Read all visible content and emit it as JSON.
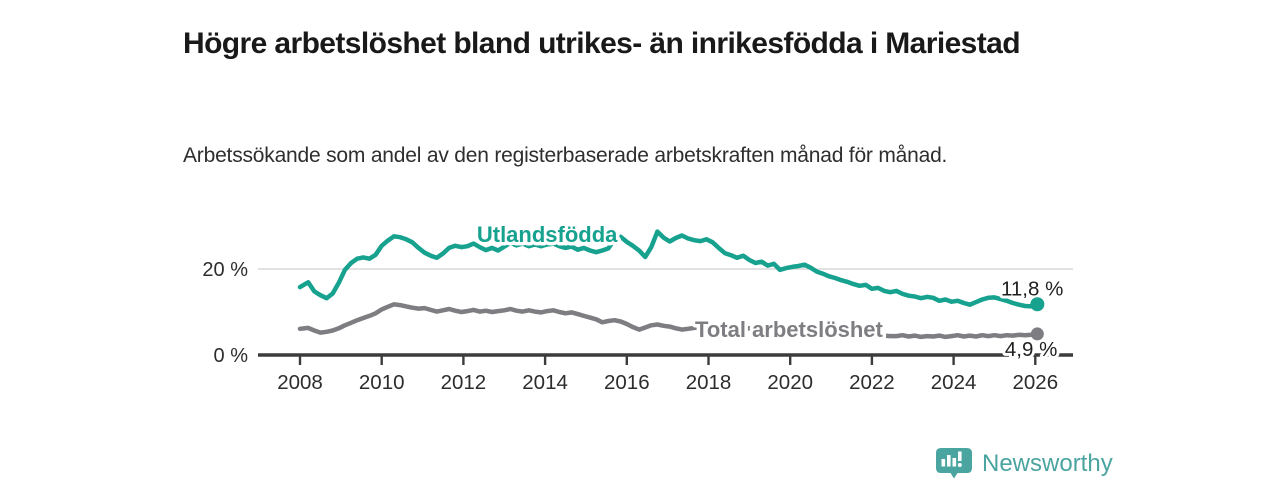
{
  "header": {
    "title": "Högre arbetslöshet bland utrikes- än inrikesfödda i Mariestad",
    "subtitle": "Arbetssökande som andel av den registerbaserade arbetskraften månad för månad."
  },
  "branding": {
    "logo_text": "Newsworthy",
    "logo_icon": "bar-chart-speech-bubble-icon",
    "logo_color": "#4aa49f"
  },
  "chart_data": {
    "type": "line",
    "x_unit": "year (monthly observations)",
    "y_unit": "percent of registered labour force",
    "xlim": [
      2007.5,
      2026.9
    ],
    "ylim": [
      0,
      30
    ],
    "grid": "single horizontal gridline at 20 %",
    "colors": {
      "axis": "#3c3c3c",
      "gridline": "#d8d8d8",
      "tick_label": "#2d2d2d",
      "annotation": "#1f1f1f"
    },
    "y_ticks": [
      {
        "value": 20,
        "label": "20 %",
        "gridline": true
      },
      {
        "value": 0,
        "label": "0 %",
        "gridline": false
      }
    ],
    "x_ticks": [
      {
        "value": 2008,
        "label": "2008"
      },
      {
        "value": 2010,
        "label": "2010"
      },
      {
        "value": 2012,
        "label": "2012"
      },
      {
        "value": 2014,
        "label": "2014"
      },
      {
        "value": 2016,
        "label": "2016"
      },
      {
        "value": 2018,
        "label": "2018"
      },
      {
        "value": 2020,
        "label": "2020"
      },
      {
        "value": 2022,
        "label": "2022"
      },
      {
        "value": 2024,
        "label": "2024"
      },
      {
        "value": 2026,
        "label": "2026"
      }
    ],
    "series": [
      {
        "name": "Utlandsfödda",
        "color": "#16a28f",
        "end_label": "11,8 %",
        "end_value": 11.8,
        "label": {
          "text": "Utlandsfödda",
          "year": 2014.05,
          "value": 26.3,
          "anchor": "middle"
        },
        "points": [
          [
            2008.0,
            15.8
          ],
          [
            2008.2,
            16.9
          ],
          [
            2008.35,
            14.8
          ],
          [
            2008.5,
            13.9
          ],
          [
            2008.65,
            13.2
          ],
          [
            2008.8,
            14.3
          ],
          [
            2008.95,
            16.8
          ],
          [
            2009.1,
            19.8
          ],
          [
            2009.25,
            21.4
          ],
          [
            2009.4,
            22.4
          ],
          [
            2009.55,
            22.7
          ],
          [
            2009.7,
            22.4
          ],
          [
            2009.85,
            23.3
          ],
          [
            2010.0,
            25.4
          ],
          [
            2010.15,
            26.6
          ],
          [
            2010.3,
            27.6
          ],
          [
            2010.45,
            27.4
          ],
          [
            2010.6,
            26.9
          ],
          [
            2010.75,
            26.2
          ],
          [
            2010.9,
            24.9
          ],
          [
            2011.05,
            23.8
          ],
          [
            2011.2,
            23.1
          ],
          [
            2011.35,
            22.6
          ],
          [
            2011.5,
            23.6
          ],
          [
            2011.65,
            24.9
          ],
          [
            2011.8,
            25.4
          ],
          [
            2011.95,
            25.1
          ],
          [
            2012.1,
            25.3
          ],
          [
            2012.25,
            25.9
          ],
          [
            2012.4,
            25.1
          ],
          [
            2012.55,
            24.4
          ],
          [
            2012.7,
            24.9
          ],
          [
            2012.85,
            24.3
          ],
          [
            2013.0,
            25.2
          ],
          [
            2013.15,
            26.1
          ],
          [
            2013.3,
            25.5
          ],
          [
            2013.45,
            25.9
          ],
          [
            2013.6,
            25.3
          ],
          [
            2013.75,
            25.7
          ],
          [
            2013.9,
            25.3
          ],
          [
            2014.05,
            25.7
          ],
          [
            2014.2,
            25.9
          ],
          [
            2014.35,
            25.3
          ],
          [
            2014.5,
            24.9
          ],
          [
            2014.65,
            25.2
          ],
          [
            2014.8,
            24.5
          ],
          [
            2014.95,
            24.9
          ],
          [
            2015.1,
            24.3
          ],
          [
            2015.25,
            23.9
          ],
          [
            2015.4,
            24.3
          ],
          [
            2015.55,
            24.8
          ],
          [
            2015.7,
            26.9
          ],
          [
            2015.85,
            27.5
          ],
          [
            2016.0,
            26.3
          ],
          [
            2016.15,
            25.4
          ],
          [
            2016.3,
            24.3
          ],
          [
            2016.45,
            22.8
          ],
          [
            2016.6,
            25.1
          ],
          [
            2016.75,
            28.7
          ],
          [
            2016.9,
            27.3
          ],
          [
            2017.05,
            26.4
          ],
          [
            2017.2,
            27.2
          ],
          [
            2017.35,
            27.8
          ],
          [
            2017.5,
            27.1
          ],
          [
            2017.65,
            26.7
          ],
          [
            2017.8,
            26.5
          ],
          [
            2017.95,
            26.9
          ],
          [
            2018.1,
            26.2
          ],
          [
            2018.25,
            24.9
          ],
          [
            2018.4,
            23.7
          ],
          [
            2018.55,
            23.2
          ],
          [
            2018.7,
            22.6
          ],
          [
            2018.85,
            23.1
          ],
          [
            2019.0,
            22.1
          ],
          [
            2019.15,
            21.4
          ],
          [
            2019.3,
            21.7
          ],
          [
            2019.45,
            20.8
          ],
          [
            2019.6,
            21.2
          ],
          [
            2019.75,
            19.8
          ],
          [
            2019.9,
            20.2
          ],
          [
            2020.05,
            20.5
          ],
          [
            2020.2,
            20.7
          ],
          [
            2020.35,
            21.0
          ],
          [
            2020.5,
            20.3
          ],
          [
            2020.65,
            19.4
          ],
          [
            2020.8,
            18.9
          ],
          [
            2020.95,
            18.3
          ],
          [
            2021.1,
            17.9
          ],
          [
            2021.25,
            17.4
          ],
          [
            2021.4,
            17.0
          ],
          [
            2021.55,
            16.5
          ],
          [
            2021.7,
            16.1
          ],
          [
            2021.85,
            16.3
          ],
          [
            2022.0,
            15.4
          ],
          [
            2022.15,
            15.6
          ],
          [
            2022.3,
            14.9
          ],
          [
            2022.45,
            14.6
          ],
          [
            2022.6,
            14.9
          ],
          [
            2022.75,
            14.2
          ],
          [
            2022.9,
            13.8
          ],
          [
            2023.05,
            13.6
          ],
          [
            2023.2,
            13.2
          ],
          [
            2023.35,
            13.5
          ],
          [
            2023.5,
            13.3
          ],
          [
            2023.65,
            12.6
          ],
          [
            2023.8,
            12.9
          ],
          [
            2023.95,
            12.4
          ],
          [
            2024.1,
            12.6
          ],
          [
            2024.25,
            12.1
          ],
          [
            2024.4,
            11.7
          ],
          [
            2024.55,
            12.3
          ],
          [
            2024.7,
            12.9
          ],
          [
            2024.85,
            13.3
          ],
          [
            2025.0,
            13.4
          ],
          [
            2025.15,
            13.0
          ],
          [
            2025.3,
            12.6
          ],
          [
            2025.45,
            12.1
          ],
          [
            2025.6,
            11.7
          ],
          [
            2025.75,
            11.4
          ],
          [
            2025.9,
            11.3
          ],
          [
            2026.05,
            11.8
          ]
        ]
      },
      {
        "name": "Total arbetslöshet",
        "color": "#7e7e82",
        "end_label": "4,9 %",
        "end_value": 4.9,
        "label": {
          "text": "Total arbetslöshet",
          "year": 2017.67,
          "value": 4.2,
          "anchor": "start"
        },
        "points": [
          [
            2008.0,
            6.1
          ],
          [
            2008.2,
            6.3
          ],
          [
            2008.35,
            5.7
          ],
          [
            2008.5,
            5.2
          ],
          [
            2008.65,
            5.4
          ],
          [
            2008.8,
            5.7
          ],
          [
            2008.95,
            6.2
          ],
          [
            2009.1,
            6.9
          ],
          [
            2009.25,
            7.5
          ],
          [
            2009.4,
            8.1
          ],
          [
            2009.55,
            8.6
          ],
          [
            2009.7,
            9.1
          ],
          [
            2009.85,
            9.7
          ],
          [
            2010.0,
            10.6
          ],
          [
            2010.15,
            11.2
          ],
          [
            2010.3,
            11.8
          ],
          [
            2010.45,
            11.6
          ],
          [
            2010.6,
            11.3
          ],
          [
            2010.75,
            11.0
          ],
          [
            2010.9,
            10.8
          ],
          [
            2011.05,
            10.9
          ],
          [
            2011.2,
            10.5
          ],
          [
            2011.35,
            10.1
          ],
          [
            2011.5,
            10.4
          ],
          [
            2011.65,
            10.7
          ],
          [
            2011.8,
            10.3
          ],
          [
            2011.95,
            10.0
          ],
          [
            2012.1,
            10.2
          ],
          [
            2012.25,
            10.5
          ],
          [
            2012.4,
            10.1
          ],
          [
            2012.55,
            10.3
          ],
          [
            2012.7,
            10.0
          ],
          [
            2012.85,
            10.2
          ],
          [
            2013.0,
            10.4
          ],
          [
            2013.15,
            10.7
          ],
          [
            2013.3,
            10.3
          ],
          [
            2013.45,
            10.1
          ],
          [
            2013.6,
            10.4
          ],
          [
            2013.75,
            10.1
          ],
          [
            2013.9,
            9.9
          ],
          [
            2014.05,
            10.2
          ],
          [
            2014.2,
            10.4
          ],
          [
            2014.35,
            10.0
          ],
          [
            2014.5,
            9.7
          ],
          [
            2014.65,
            9.9
          ],
          [
            2014.8,
            9.5
          ],
          [
            2014.95,
            9.1
          ],
          [
            2015.1,
            8.7
          ],
          [
            2015.25,
            8.3
          ],
          [
            2015.4,
            7.6
          ],
          [
            2015.55,
            7.9
          ],
          [
            2015.7,
            8.1
          ],
          [
            2015.85,
            7.8
          ],
          [
            2016.0,
            7.2
          ],
          [
            2016.15,
            6.5
          ],
          [
            2016.3,
            5.9
          ],
          [
            2016.45,
            6.4
          ],
          [
            2016.6,
            6.9
          ],
          [
            2016.75,
            7.1
          ],
          [
            2016.9,
            6.8
          ],
          [
            2017.05,
            6.6
          ],
          [
            2017.2,
            6.2
          ],
          [
            2017.35,
            5.9
          ],
          [
            2017.5,
            6.1
          ],
          [
            2017.65,
            6.3
          ],
          [
            2017.8,
            6.5
          ],
          [
            2017.95,
            6.4
          ],
          [
            2018.1,
            6.6
          ],
          [
            2018.25,
            6.4
          ],
          [
            2018.4,
            6.2
          ],
          [
            2018.55,
            6.5
          ],
          [
            2018.7,
            6.3
          ],
          [
            2018.85,
            6.1
          ],
          [
            2019.0,
            6.2
          ],
          [
            2019.15,
            6.0
          ],
          [
            2019.3,
            5.8
          ],
          [
            2019.45,
            5.9
          ],
          [
            2019.6,
            5.7
          ],
          [
            2019.75,
            5.6
          ],
          [
            2019.9,
            5.8
          ],
          [
            2020.05,
            6.0
          ],
          [
            2020.2,
            6.3
          ],
          [
            2020.35,
            6.5
          ],
          [
            2020.5,
            6.3
          ],
          [
            2020.65,
            6.1
          ],
          [
            2020.8,
            5.9
          ],
          [
            2020.95,
            5.7
          ],
          [
            2021.1,
            5.6
          ],
          [
            2021.25,
            5.4
          ],
          [
            2021.4,
            5.2
          ],
          [
            2021.55,
            5.0
          ],
          [
            2021.7,
            4.9
          ],
          [
            2021.85,
            4.8
          ],
          [
            2022.0,
            4.7
          ],
          [
            2022.15,
            4.6
          ],
          [
            2022.3,
            4.5
          ],
          [
            2022.45,
            4.4
          ],
          [
            2022.6,
            4.4
          ],
          [
            2022.75,
            4.6
          ],
          [
            2022.9,
            4.3
          ],
          [
            2023.05,
            4.5
          ],
          [
            2023.2,
            4.2
          ],
          [
            2023.35,
            4.4
          ],
          [
            2023.5,
            4.3
          ],
          [
            2023.65,
            4.5
          ],
          [
            2023.8,
            4.2
          ],
          [
            2023.95,
            4.4
          ],
          [
            2024.1,
            4.6
          ],
          [
            2024.25,
            4.3
          ],
          [
            2024.4,
            4.5
          ],
          [
            2024.55,
            4.3
          ],
          [
            2024.7,
            4.6
          ],
          [
            2024.85,
            4.4
          ],
          [
            2025.0,
            4.6
          ],
          [
            2025.15,
            4.4
          ],
          [
            2025.3,
            4.6
          ],
          [
            2025.45,
            4.5
          ],
          [
            2025.6,
            4.7
          ],
          [
            2025.75,
            4.6
          ],
          [
            2025.9,
            4.7
          ],
          [
            2026.05,
            4.9
          ]
        ]
      }
    ]
  }
}
